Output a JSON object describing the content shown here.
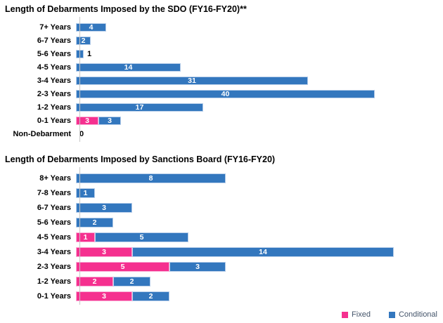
{
  "page": {
    "background": "#ffffff"
  },
  "colors": {
    "fixed": "#F5308F",
    "conditional": "#3377BE",
    "fixed_border": "#F9AED6",
    "conditional_border": "#B9CFEA",
    "axis_line": "#C6C6C6",
    "title": "#000000",
    "legend_text": "#44546A",
    "inside_label": "#FFFFFF",
    "outside_label": "#000000"
  },
  "legend": {
    "position": "bottom-right",
    "items": [
      {
        "label": "Fixed",
        "color_key": "fixed"
      },
      {
        "label": "Conditional",
        "color_key": "conditional"
      }
    ]
  },
  "chart_data": [
    {
      "type": "bar",
      "orientation": "horizontal",
      "stacked": true,
      "title": "Length of Debarments Imposed by the SDO (FY16-FY20)**",
      "categories": [
        "7+ Years",
        "6-7 Years",
        "5-6 Years",
        "4-5 Years",
        "3-4 Years",
        "2-3 Years",
        "1-2 Years",
        "0-1 Years",
        "Non-Debarment"
      ],
      "series": [
        {
          "name": "Fixed",
          "values": [
            0,
            0,
            0,
            0,
            0,
            0,
            0,
            3,
            0
          ]
        },
        {
          "name": "Conditional",
          "values": [
            4,
            2,
            1,
            14,
            31,
            40,
            17,
            3,
            0
          ]
        }
      ],
      "data_labels": true,
      "grid": false,
      "xlim": [
        0,
        42.5
      ],
      "ylabel": "",
      "xlabel": ""
    },
    {
      "type": "bar",
      "orientation": "horizontal",
      "stacked": true,
      "title": "Length of Debarments Imposed by Sanctions Board (FY16-FY20)",
      "categories": [
        "8+ Years",
        "7-8 Years",
        "6-7 Years",
        "5-6 Years",
        "4-5 Years",
        "3-4 Years",
        "2-3 Years",
        "1-2 Years",
        "0-1 Years"
      ],
      "series": [
        {
          "name": "Fixed",
          "values": [
            0,
            0,
            0,
            0,
            1,
            3,
            5,
            2,
            3
          ]
        },
        {
          "name": "Conditional",
          "values": [
            8,
            1,
            3,
            2,
            5,
            14,
            3,
            2,
            2
          ]
        }
      ],
      "data_labels": true,
      "grid": false,
      "xlim": [
        0,
        17
      ],
      "ylabel": "",
      "xlabel": ""
    }
  ]
}
